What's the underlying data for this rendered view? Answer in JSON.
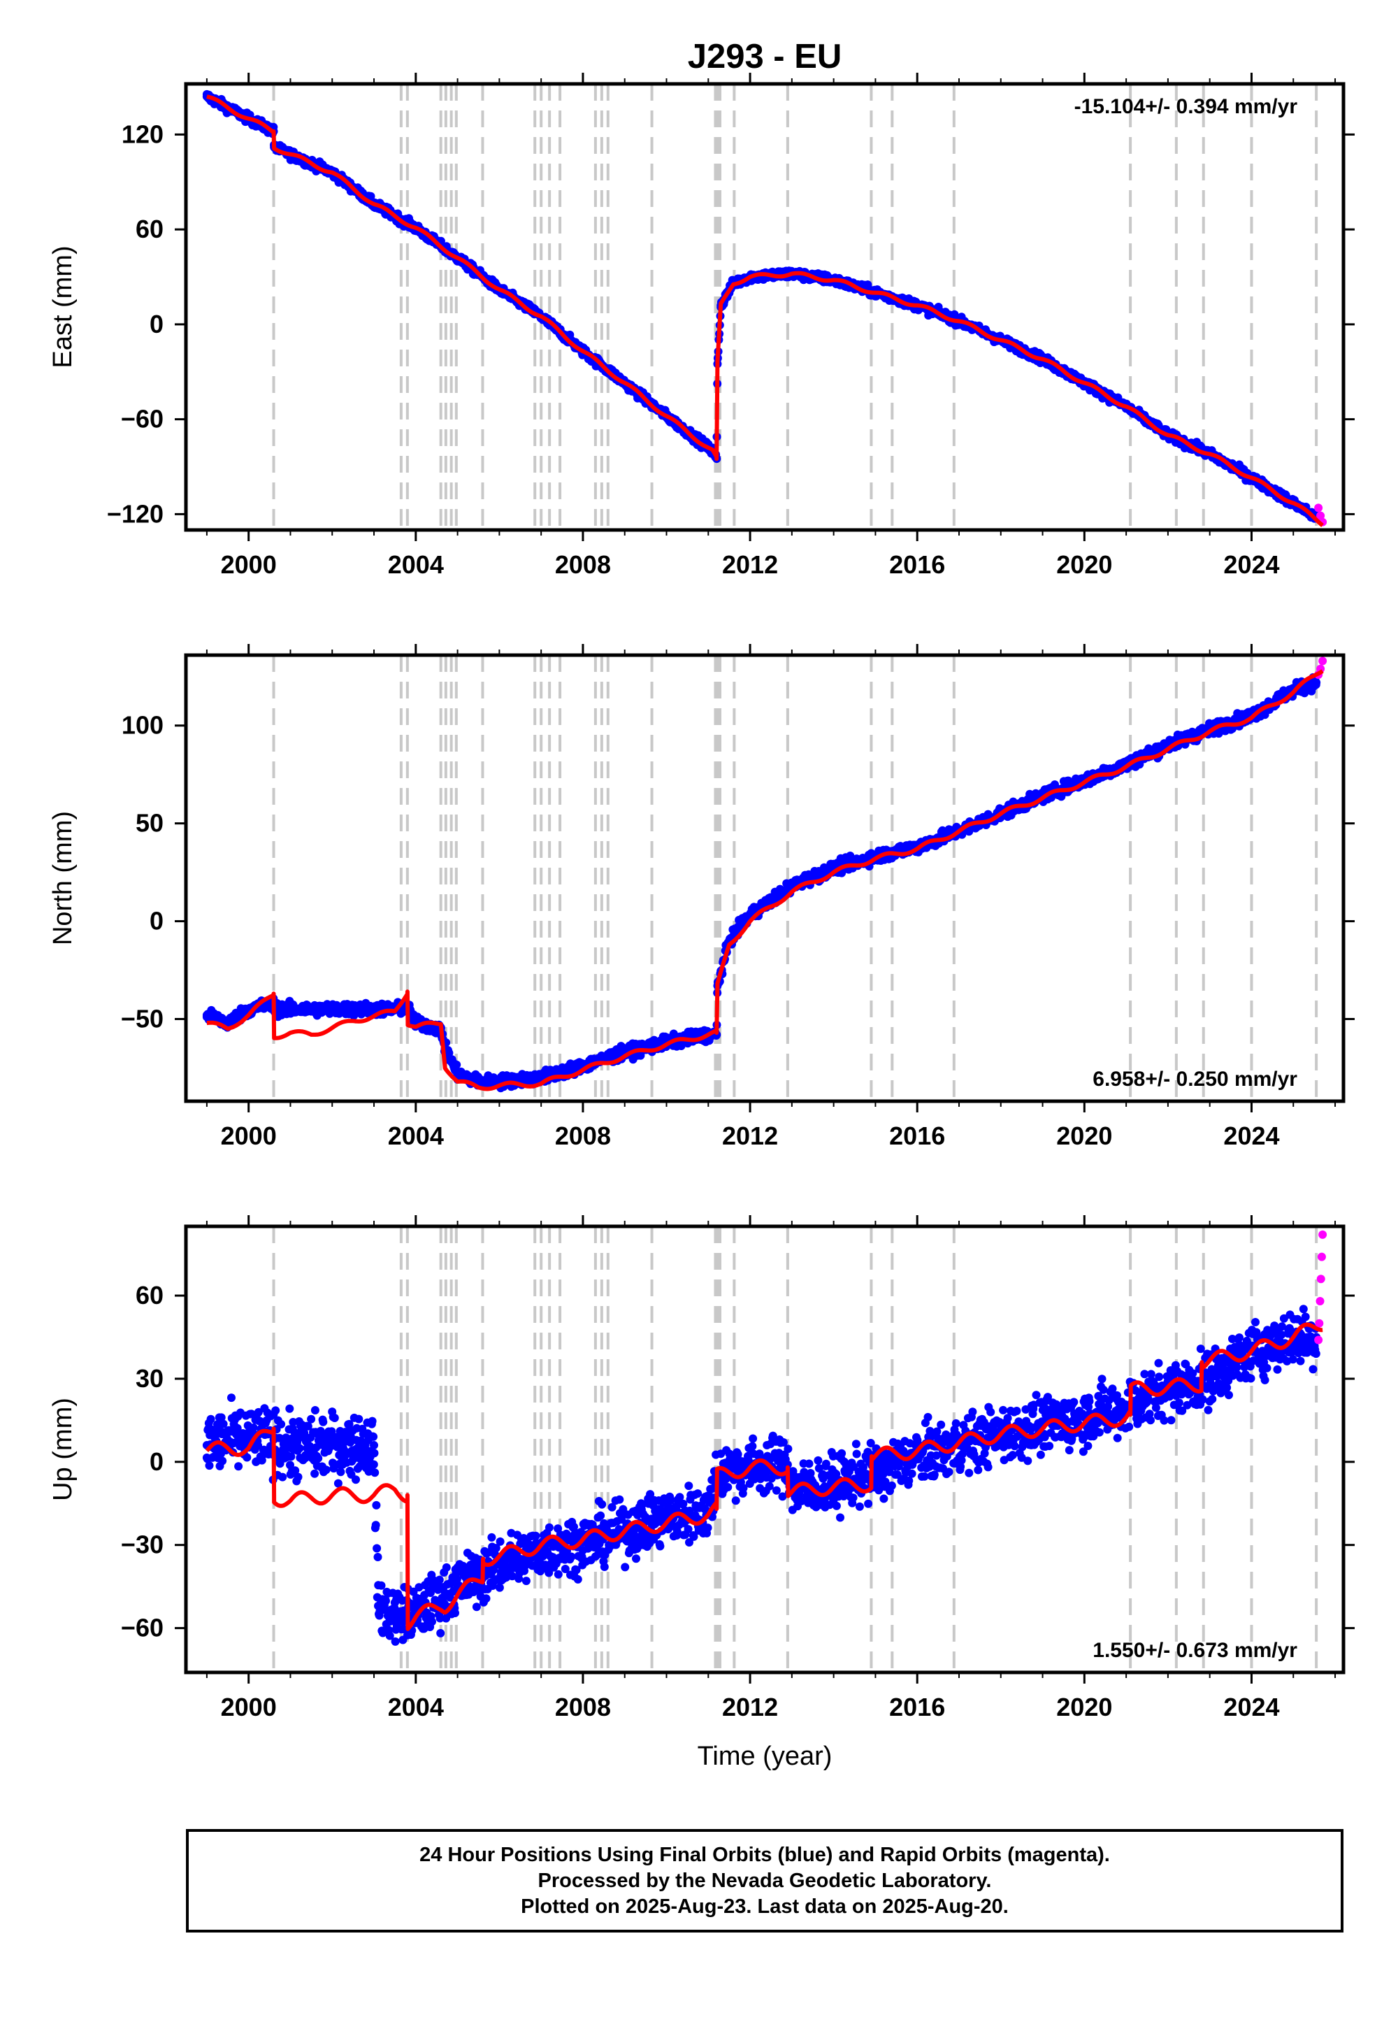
{
  "title": "J293 - EU",
  "colors": {
    "final_orbits": "#0000ff",
    "rapid_orbits": "#ff00ff",
    "model": "#ff0000",
    "event_lines": "#c8c8c8"
  },
  "event_lines_years": [
    2000.6,
    2003.65,
    2003.8,
    2004.6,
    2004.72,
    2004.85,
    2004.97,
    2005.6,
    2006.85,
    2007.0,
    2007.2,
    2007.45,
    2008.3,
    2008.45,
    2008.6,
    2009.65,
    2011.17,
    2011.22,
    2011.28,
    2011.62,
    2012.9,
    2014.9,
    2015.4,
    2016.88,
    2021.1,
    2022.2,
    2022.85,
    2024.0,
    2025.55
  ],
  "chart_data": [
    {
      "type": "scatter",
      "panel": "east",
      "ylabel": "East (mm)",
      "xlabel": "",
      "xlim": [
        1998.5,
        2026.2
      ],
      "ylim": [
        -130,
        152
      ],
      "yticks": [
        -120,
        -60,
        0,
        60,
        120
      ],
      "xticks": [
        2000,
        2004,
        2008,
        2012,
        2016,
        2020,
        2024
      ],
      "annotation": "-15.104+/- 0.394 mm/yr",
      "annotation_position": "top-right",
      "series": [
        {
          "name": "Final Orbits",
          "style": "dots",
          "x": [
            1999.0,
            2000.0,
            2000.6,
            2000.61,
            2002.0,
            2003.0,
            2004.0,
            2005.0,
            2006.0,
            2007.0,
            2008.0,
            2009.0,
            2010.0,
            2011.1,
            2011.2,
            2011.22,
            2011.3,
            2011.6,
            2012.0,
            2013.0,
            2014.0,
            2015.0,
            2016.0,
            2017.0,
            2018.0,
            2019.0,
            2020.0,
            2021.0,
            2022.0,
            2023.0,
            2024.0,
            2025.0,
            2025.55
          ],
          "y": [
            144,
            130,
            122,
            112,
            96,
            76,
            61,
            42,
            22,
            5,
            -17,
            -37,
            -58,
            -80,
            -85,
            -25,
            12,
            26,
            30,
            32,
            28,
            20,
            12,
            2,
            -10,
            -22,
            -37,
            -52,
            -70,
            -82,
            -97,
            -113,
            -122
          ]
        },
        {
          "name": "Rapid Orbits",
          "style": "dots",
          "x": [
            2025.6,
            2025.65,
            2025.7
          ],
          "y": [
            -116,
            -121,
            -125
          ]
        },
        {
          "name": "Model",
          "style": "line",
          "x": [
            1999.0,
            2000.0,
            2000.6,
            2000.61,
            2002.0,
            2003.0,
            2004.0,
            2005.0,
            2006.0,
            2007.0,
            2008.0,
            2009.0,
            2010.0,
            2011.1,
            2011.2,
            2011.22,
            2011.3,
            2011.6,
            2012.0,
            2013.0,
            2014.0,
            2015.0,
            2016.0,
            2017.0,
            2018.0,
            2019.0,
            2020.0,
            2021.0,
            2022.0,
            2023.0,
            2024.0,
            2025.0,
            2025.7
          ],
          "y": [
            144,
            130,
            122,
            112,
            96,
            76,
            61,
            42,
            22,
            5,
            -17,
            -37,
            -58,
            -80,
            -85,
            -25,
            12,
            26,
            30,
            32,
            28,
            20,
            12,
            2,
            -10,
            -22,
            -37,
            -52,
            -70,
            -82,
            -97,
            -113,
            -126
          ]
        }
      ]
    },
    {
      "type": "scatter",
      "panel": "north",
      "ylabel": "North (mm)",
      "xlabel": "",
      "xlim": [
        1998.5,
        2026.2
      ],
      "ylim": [
        -92,
        136
      ],
      "yticks": [
        -50,
        0,
        50,
        100
      ],
      "xticks": [
        2000,
        2004,
        2008,
        2012,
        2016,
        2020,
        2024
      ],
      "annotation": "6.958+/- 0.250 mm/yr",
      "annotation_position": "bottom-right",
      "series": [
        {
          "name": "Final Orbits",
          "style": "dots",
          "x": [
            1999.0,
            1999.5,
            2000.0,
            2000.6,
            2000.61,
            2001.5,
            2002.5,
            2003.5,
            2003.8,
            2004.0,
            2004.6,
            2004.7,
            2005.0,
            2005.5,
            2006.0,
            2007.0,
            2008.0,
            2009.0,
            2010.0,
            2011.0,
            2011.2,
            2011.22,
            2011.5,
            2012.0,
            2013.0,
            2014.0,
            2015.0,
            2016.0,
            2017.0,
            2018.0,
            2019.0,
            2020.0,
            2021.0,
            2022.0,
            2023.0,
            2024.0,
            2025.0,
            2025.55
          ],
          "y": [
            -48,
            -52,
            -45,
            -42,
            -45,
            -45,
            -45,
            -45,
            -44,
            -52,
            -55,
            -65,
            -78,
            -82,
            -82,
            -80,
            -74,
            -67,
            -62,
            -58,
            -58,
            -33,
            -10,
            3,
            18,
            27,
            33,
            38,
            46,
            55,
            64,
            72,
            80,
            90,
            98,
            105,
            118,
            122
          ]
        },
        {
          "name": "Rapid Orbits",
          "style": "dots",
          "x": [
            2025.6,
            2025.65,
            2025.7
          ],
          "y": [
            126,
            129,
            133
          ]
        },
        {
          "name": "Model",
          "style": "line",
          "x": [
            1999.0,
            1999.5,
            2000.0,
            2000.6,
            2000.61,
            2001.0,
            2001.5,
            2002.5,
            2003.5,
            2003.8,
            2003.81,
            2004.0,
            2004.6,
            2004.7,
            2005.0,
            2005.5,
            2006.0,
            2007.0,
            2008.0,
            2009.0,
            2010.0,
            2011.0,
            2011.2,
            2011.22,
            2011.5,
            2012.0,
            2013.0,
            2014.0,
            2015.0,
            2016.0,
            2017.0,
            2018.0,
            2019.0,
            2020.0,
            2021.0,
            2022.0,
            2023.0,
            2024.0,
            2025.0,
            2025.7
          ],
          "y": [
            -52,
            -55,
            -48,
            -37,
            -59,
            -57,
            -58,
            -51,
            -46,
            -36,
            -52,
            -54,
            -52,
            -74,
            -82,
            -85,
            -84,
            -83,
            -76,
            -69,
            -63,
            -58,
            -57,
            -33,
            -12,
            0,
            15,
            25,
            32,
            37,
            46,
            55,
            63,
            71,
            79,
            88,
            97,
            104,
            117,
            129
          ]
        }
      ]
    },
    {
      "type": "scatter",
      "panel": "up",
      "ylabel": "Up (mm)",
      "xlabel": "Time (year)",
      "xlim": [
        1998.5,
        2026.2
      ],
      "ylim": [
        -76,
        85
      ],
      "yticks": [
        -60,
        -30,
        0,
        30,
        60
      ],
      "xticks": [
        2000,
        2004,
        2008,
        2012,
        2016,
        2020,
        2024
      ],
      "annotation": "1.550+/- 0.673 mm/yr",
      "annotation_position": "bottom-right",
      "series": [
        {
          "name": "Final Orbits",
          "style": "dots",
          "x": [
            1999.0,
            1999.5,
            2000.0,
            2000.6,
            2001.0,
            2002.0,
            2003.0,
            2003.1,
            2003.5,
            2003.8,
            2004.0,
            2005.0,
            2006.0,
            2007.0,
            2008.0,
            2009.0,
            2010.0,
            2011.0,
            2011.2,
            2011.5,
            2012.0,
            2012.9,
            2013.0,
            2014.0,
            2015.0,
            2016.0,
            2017.0,
            2018.0,
            2019.0,
            2020.0,
            2021.0,
            2022.0,
            2023.0,
            2024.0,
            2025.0,
            2025.55
          ],
          "y": [
            6,
            8,
            8,
            8,
            5,
            6,
            6,
            -52,
            -55,
            -55,
            -55,
            -45,
            -37,
            -32,
            -29,
            -25,
            -20,
            -18,
            -5,
            -2,
            -2,
            -1,
            -10,
            -8,
            -4,
            2,
            6,
            10,
            13,
            16,
            20,
            26,
            30,
            40,
            45,
            45
          ]
        },
        {
          "name": "Rapid Orbits",
          "style": "dots",
          "x": [
            2025.6,
            2025.62,
            2025.64,
            2025.66,
            2025.68,
            2025.7
          ],
          "y": [
            44,
            50,
            58,
            66,
            74,
            82
          ]
        },
        {
          "name": "Model",
          "style": "line",
          "x": [
            1999.0,
            1999.5,
            2000.0,
            2000.6,
            2000.61,
            2001.0,
            2002.0,
            2003.0,
            2003.5,
            2003.8,
            2003.81,
            2004.0,
            2004.6,
            2004.7,
            2005.0,
            2005.6,
            2005.61,
            2006.0,
            2007.0,
            2008.0,
            2009.0,
            2010.0,
            2011.0,
            2011.2,
            2011.21,
            2012.0,
            2012.9,
            2012.91,
            2014.0,
            2014.9,
            2014.91,
            2016.0,
            2017.0,
            2018.0,
            2019.0,
            2020.0,
            2021.0,
            2021.1,
            2021.11,
            2022.0,
            2022.8,
            2022.81,
            2024.0,
            2025.0,
            2025.7
          ],
          "y": [
            4,
            5,
            5,
            12,
            -13,
            -14,
            -12,
            -12,
            -10,
            -12,
            -58,
            -56,
            -52,
            -52,
            -48,
            -42,
            -35,
            -34,
            -30,
            -28,
            -25,
            -22,
            -19,
            -17,
            -5,
            -2,
            -2,
            -11,
            -9,
            -8,
            2,
            4,
            7,
            10,
            12,
            14,
            16,
            17,
            26,
            27,
            28,
            36,
            40,
            45,
            50
          ]
        }
      ]
    }
  ],
  "footer": {
    "line1": "24 Hour Positions Using Final Orbits (blue) and Rapid Orbits (magenta).",
    "line2": "Processed by the Nevada Geodetic Laboratory.",
    "line3": "Plotted on 2025-Aug-23. Last data on 2025-Aug-20."
  }
}
